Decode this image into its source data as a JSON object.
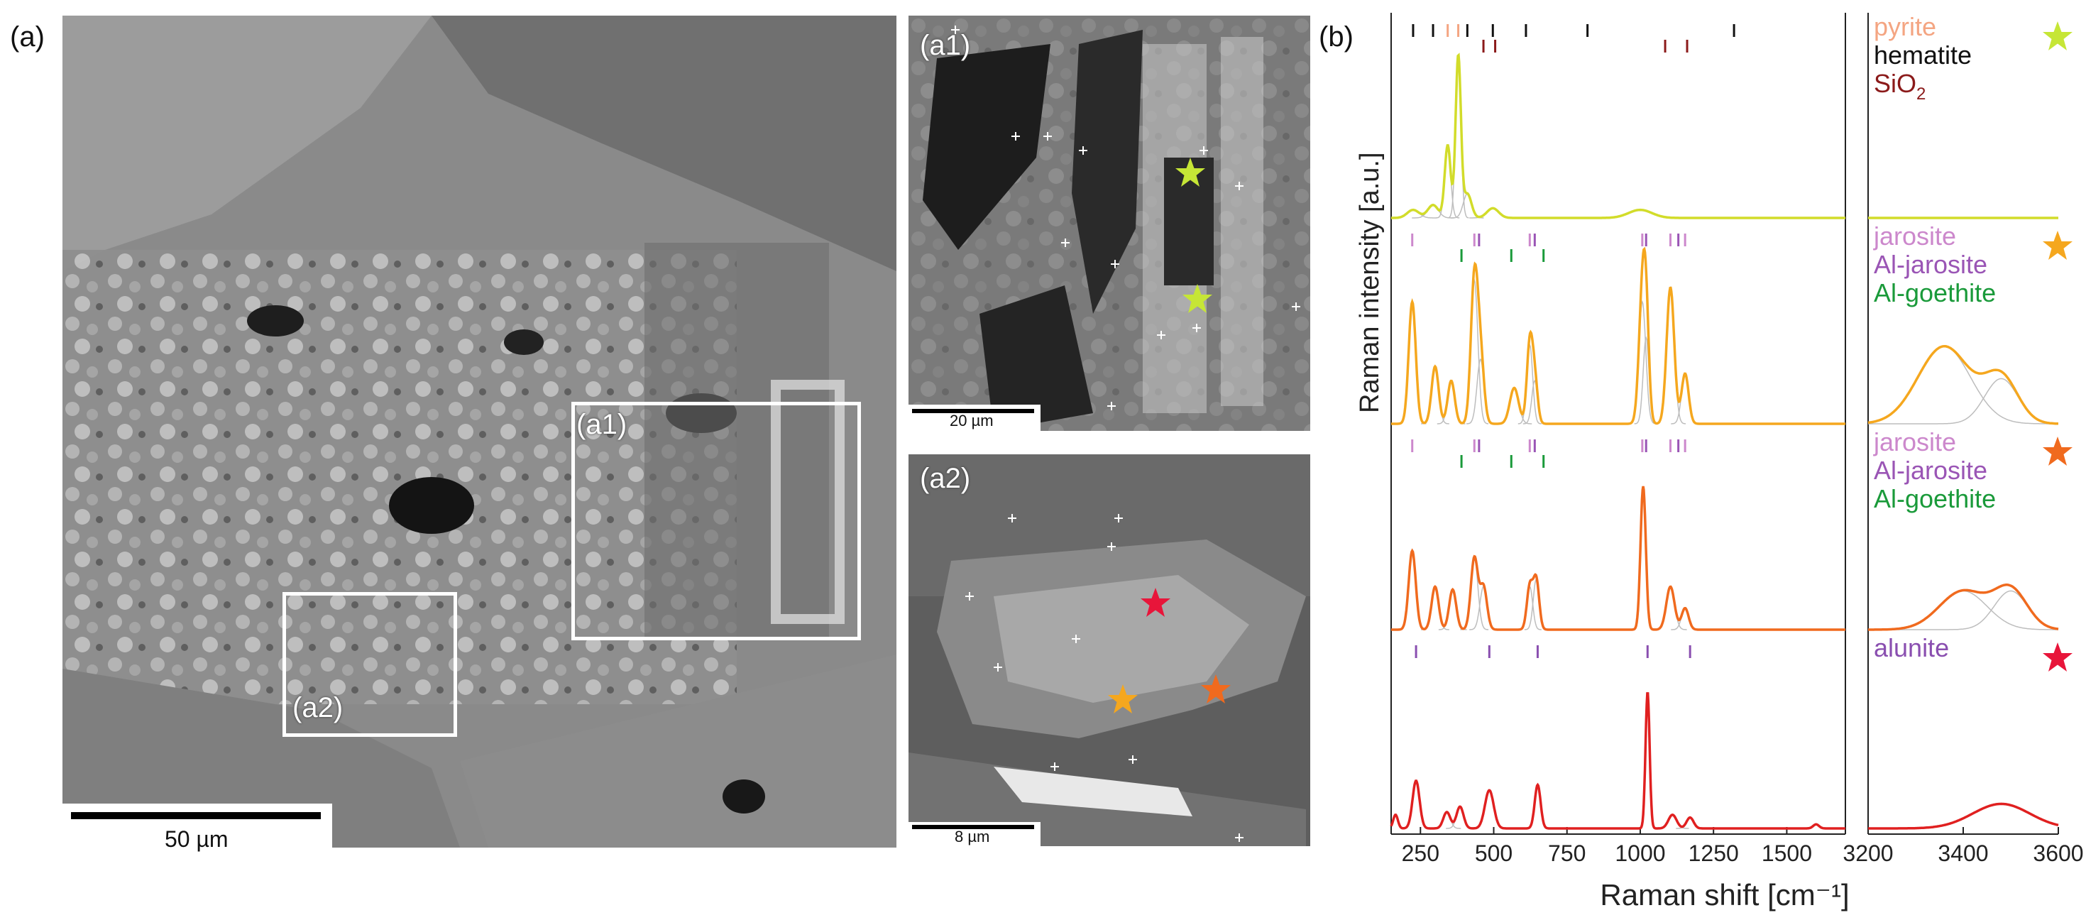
{
  "panels": {
    "a": {
      "label": "(a)",
      "scale_text": "50 µm",
      "box_a1": "(a1)",
      "box_a2": "(a2)"
    },
    "a1": {
      "label": "(a1)",
      "scale_text": "20 µm"
    },
    "a2": {
      "label": "(a2)",
      "scale_text": "8 µm"
    },
    "b": {
      "label": "(b)"
    }
  },
  "chart_data": {
    "type": "line",
    "panel": "(b)",
    "xlabel": "Raman shift [cm⁻¹]",
    "ylabel": "Raman intensity [a.u.]",
    "left_xlim": [
      150,
      1700
    ],
    "left_xticks": [
      250,
      500,
      750,
      1000,
      1250,
      1500
    ],
    "right_xlim": [
      3200,
      3600
    ],
    "right_xticks": [
      3200,
      3400,
      3600
    ],
    "colors": {
      "pyrite": "#f4a582",
      "hematite": "#111111",
      "SiO2": "#8b1a1a",
      "jarosite": "#cc88cc",
      "Al-jarosite": "#9a55b5",
      "Al-goethite": "#1a9a3a",
      "alunite": "#8a4fb0",
      "fit": "#bdbdbd"
    },
    "spectra": [
      {
        "star_color": "#c6e636",
        "line_color": "#d2dc2a",
        "legend": [
          {
            "text": "pyrite",
            "color": "#f4a582"
          },
          {
            "text": "hematite",
            "color": "#111111"
          },
          {
            "text": "SiO",
            "sub": "2",
            "color": "#8b1a1a"
          }
        ],
        "reference_ticks": [
          {
            "mineral": "hematite",
            "row": 0,
            "x": [
              225,
              293,
              410,
              497,
              610,
              1320
            ]
          },
          {
            "mineral": "pyrite",
            "row": 0,
            "x": [
              343,
              379
            ]
          },
          {
            "mineral": "SiO2",
            "row": 1,
            "x": [
              465,
              505,
              1085,
              1160
            ]
          },
          {
            "mineral": "hematite",
            "row": 0,
            "x": [
              820
            ]
          }
        ],
        "peaks": [
          [
            225,
            0.05,
            20
          ],
          [
            293,
            0.08,
            18
          ],
          [
            343,
            0.45,
            10
          ],
          [
            379,
            1.0,
            9
          ],
          [
            410,
            0.15,
            14
          ],
          [
            497,
            0.06,
            20
          ],
          [
            1000,
            0.05,
            40
          ]
        ],
        "right_peaks": []
      },
      {
        "star_color": "#f5a71e",
        "line_color": "#f5a71e",
        "legend": [
          {
            "text": "jarosite",
            "color": "#cc88cc"
          },
          {
            "text": "Al-jarosite",
            "color": "#9a55b5"
          },
          {
            "text": "Al-goethite",
            "color": "#1a9a3a"
          }
        ],
        "reference_ticks": [
          {
            "mineral": "jarosite",
            "row": 0,
            "x": [
              222,
              434,
              623,
              1007,
              1103,
              1153
            ]
          },
          {
            "mineral": "Al-jarosite",
            "row": 0,
            "x": [
              450,
              640,
              1020,
              1130
            ]
          },
          {
            "mineral": "Al-goethite",
            "row": 1,
            "x": [
              390,
              560,
              670
            ]
          }
        ],
        "peaks": [
          [
            222,
            0.85,
            12
          ],
          [
            300,
            0.4,
            12
          ],
          [
            355,
            0.3,
            12
          ],
          [
            434,
            1.0,
            12
          ],
          [
            455,
            0.45,
            12
          ],
          [
            570,
            0.25,
            15
          ],
          [
            623,
            0.55,
            10
          ],
          [
            640,
            0.3,
            10
          ],
          [
            1007,
            0.85,
            12
          ],
          [
            1020,
            0.6,
            10
          ],
          [
            1103,
            0.95,
            13
          ],
          [
            1153,
            0.35,
            12
          ]
        ],
        "right_peaks": [
          [
            3360,
            0.6,
            55
          ],
          [
            3480,
            0.35,
            35
          ]
        ]
      },
      {
        "star_color": "#f06a1e",
        "line_color": "#f06a1e",
        "legend": [
          {
            "text": "jarosite",
            "color": "#cc88cc"
          },
          {
            "text": "Al-jarosite",
            "color": "#9a55b5"
          },
          {
            "text": "Al-goethite",
            "color": "#1a9a3a"
          }
        ],
        "reference_ticks": [
          {
            "mineral": "jarosite",
            "row": 0,
            "x": [
              222,
              434,
              623,
              1007,
              1103,
              1153
            ]
          },
          {
            "mineral": "Al-jarosite",
            "row": 0,
            "x": [
              450,
              640,
              1020,
              1130
            ]
          },
          {
            "mineral": "Al-goethite",
            "row": 1,
            "x": [
              390,
              560,
              670
            ]
          }
        ],
        "peaks": [
          [
            222,
            0.55,
            12
          ],
          [
            300,
            0.3,
            12
          ],
          [
            360,
            0.28,
            12
          ],
          [
            434,
            0.5,
            12
          ],
          [
            465,
            0.3,
            12
          ],
          [
            623,
            0.3,
            10
          ],
          [
            645,
            0.35,
            10
          ],
          [
            1010,
            1.0,
            9
          ],
          [
            1103,
            0.3,
            14
          ],
          [
            1153,
            0.15,
            12
          ]
        ],
        "right_peaks": [
          [
            3400,
            0.3,
            50
          ],
          [
            3500,
            0.3,
            35
          ]
        ]
      },
      {
        "star_color": "#e8153a",
        "line_color": "#e02020",
        "legend": [
          {
            "text": "alunite",
            "color": "#8a4fb0"
          }
        ],
        "reference_ticks": [
          {
            "mineral": "alunite",
            "row": 0,
            "x": [
              235,
              485,
              650,
              1025,
              1170
            ]
          }
        ],
        "peaks": [
          [
            165,
            0.1,
            8
          ],
          [
            235,
            0.35,
            12
          ],
          [
            340,
            0.12,
            12
          ],
          [
            385,
            0.16,
            12
          ],
          [
            485,
            0.28,
            15
          ],
          [
            650,
            0.32,
            10
          ],
          [
            1025,
            1.0,
            7
          ],
          [
            1110,
            0.1,
            14
          ],
          [
            1170,
            0.08,
            12
          ],
          [
            1600,
            0.03,
            10
          ]
        ],
        "right_peaks": [
          [
            3480,
            0.2,
            60
          ]
        ]
      }
    ]
  }
}
